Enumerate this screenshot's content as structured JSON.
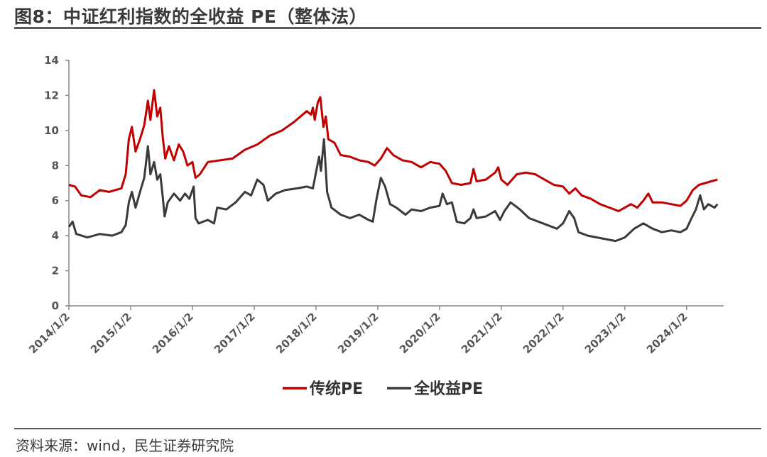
{
  "title": "图8：中证红利指数的全收益 PE（整体法）",
  "source": "资料来源：wind，民生证券研究院",
  "chart_data": {
    "type": "line",
    "ylim": [
      0,
      14
    ],
    "yticks": [
      0,
      2,
      4,
      6,
      8,
      10,
      12,
      14
    ],
    "xlim": [
      2014.0,
      2024.6
    ],
    "xticks": [
      {
        "v": 2014.0,
        "label": "2014/1/2"
      },
      {
        "v": 2015.0,
        "label": "2015/1/2"
      },
      {
        "v": 2016.0,
        "label": "2016/1/2"
      },
      {
        "v": 2017.0,
        "label": "2017/1/2"
      },
      {
        "v": 2018.0,
        "label": "2018/1/2"
      },
      {
        "v": 2019.0,
        "label": "2019/1/2"
      },
      {
        "v": 2020.0,
        "label": "2020/1/2"
      },
      {
        "v": 2021.0,
        "label": "2021/1/2"
      },
      {
        "v": 2022.0,
        "label": "2022/1/2"
      },
      {
        "v": 2023.0,
        "label": "2023/1/2"
      },
      {
        "v": 2024.0,
        "label": "2024/1/2"
      }
    ],
    "legend_position": "bottom",
    "series": [
      {
        "name": "传统PE",
        "color": "#c00000",
        "points": [
          [
            2014.0,
            6.9
          ],
          [
            2014.1,
            6.8
          ],
          [
            2014.2,
            6.3
          ],
          [
            2014.35,
            6.2
          ],
          [
            2014.5,
            6.6
          ],
          [
            2014.65,
            6.5
          ],
          [
            2014.85,
            6.7
          ],
          [
            2014.92,
            7.5
          ],
          [
            2014.97,
            9.5
          ],
          [
            2015.02,
            10.2
          ],
          [
            2015.08,
            8.8
          ],
          [
            2015.16,
            9.6
          ],
          [
            2015.22,
            10.3
          ],
          [
            2015.28,
            11.7
          ],
          [
            2015.32,
            10.6
          ],
          [
            2015.38,
            12.3
          ],
          [
            2015.43,
            10.8
          ],
          [
            2015.48,
            11.3
          ],
          [
            2015.52,
            9.6
          ],
          [
            2015.56,
            8.4
          ],
          [
            2015.62,
            9.1
          ],
          [
            2015.7,
            8.3
          ],
          [
            2015.78,
            9.2
          ],
          [
            2015.85,
            8.8
          ],
          [
            2015.92,
            8.0
          ],
          [
            2016.0,
            8.2
          ],
          [
            2016.05,
            7.3
          ],
          [
            2016.12,
            7.5
          ],
          [
            2016.25,
            8.2
          ],
          [
            2016.45,
            8.3
          ],
          [
            2016.65,
            8.4
          ],
          [
            2016.85,
            8.9
          ],
          [
            2017.05,
            9.2
          ],
          [
            2017.25,
            9.7
          ],
          [
            2017.45,
            10.0
          ],
          [
            2017.65,
            10.5
          ],
          [
            2017.85,
            11.1
          ],
          [
            2017.92,
            10.9
          ],
          [
            2017.95,
            11.3
          ],
          [
            2017.98,
            10.6
          ],
          [
            2018.03,
            11.6
          ],
          [
            2018.07,
            11.9
          ],
          [
            2018.12,
            10.2
          ],
          [
            2018.16,
            10.8
          ],
          [
            2018.2,
            9.5
          ],
          [
            2018.3,
            9.3
          ],
          [
            2018.4,
            8.6
          ],
          [
            2018.55,
            8.5
          ],
          [
            2018.7,
            8.3
          ],
          [
            2018.85,
            8.2
          ],
          [
            2018.95,
            8.0
          ],
          [
            2019.05,
            8.4
          ],
          [
            2019.15,
            9.0
          ],
          [
            2019.25,
            8.6
          ],
          [
            2019.4,
            8.3
          ],
          [
            2019.55,
            8.2
          ],
          [
            2019.7,
            7.9
          ],
          [
            2019.85,
            8.2
          ],
          [
            2020.0,
            8.1
          ],
          [
            2020.1,
            7.7
          ],
          [
            2020.2,
            7.0
          ],
          [
            2020.35,
            6.9
          ],
          [
            2020.5,
            7.0
          ],
          [
            2020.55,
            7.8
          ],
          [
            2020.6,
            7.1
          ],
          [
            2020.75,
            7.2
          ],
          [
            2020.9,
            7.6
          ],
          [
            2020.95,
            7.9
          ],
          [
            2021.0,
            7.2
          ],
          [
            2021.1,
            6.9
          ],
          [
            2021.25,
            7.5
          ],
          [
            2021.4,
            7.6
          ],
          [
            2021.55,
            7.5
          ],
          [
            2021.7,
            7.2
          ],
          [
            2021.85,
            6.9
          ],
          [
            2022.0,
            6.8
          ],
          [
            2022.1,
            6.4
          ],
          [
            2022.2,
            6.7
          ],
          [
            2022.3,
            6.3
          ],
          [
            2022.45,
            6.1
          ],
          [
            2022.6,
            5.8
          ],
          [
            2022.75,
            5.6
          ],
          [
            2022.9,
            5.4
          ],
          [
            2023.0,
            5.6
          ],
          [
            2023.1,
            5.8
          ],
          [
            2023.2,
            5.6
          ],
          [
            2023.3,
            6.0
          ],
          [
            2023.38,
            6.4
          ],
          [
            2023.45,
            5.9
          ],
          [
            2023.6,
            5.9
          ],
          [
            2023.75,
            5.8
          ],
          [
            2023.9,
            5.7
          ],
          [
            2024.0,
            6.0
          ],
          [
            2024.1,
            6.6
          ],
          [
            2024.2,
            6.9
          ],
          [
            2024.3,
            7.0
          ],
          [
            2024.4,
            7.1
          ],
          [
            2024.5,
            7.2
          ]
        ]
      },
      {
        "name": "全收益PE",
        "color": "#3a3a3a",
        "points": [
          [
            2014.0,
            4.5
          ],
          [
            2014.06,
            4.8
          ],
          [
            2014.12,
            4.1
          ],
          [
            2014.3,
            3.9
          ],
          [
            2014.5,
            4.1
          ],
          [
            2014.7,
            4.0
          ],
          [
            2014.85,
            4.2
          ],
          [
            2014.92,
            4.6
          ],
          [
            2014.97,
            5.9
          ],
          [
            2015.02,
            6.5
          ],
          [
            2015.08,
            5.6
          ],
          [
            2015.16,
            6.6
          ],
          [
            2015.22,
            7.3
          ],
          [
            2015.28,
            9.1
          ],
          [
            2015.32,
            7.5
          ],
          [
            2015.38,
            8.2
          ],
          [
            2015.43,
            7.2
          ],
          [
            2015.48,
            7.5
          ],
          [
            2015.52,
            6.2
          ],
          [
            2015.55,
            5.1
          ],
          [
            2015.6,
            5.9
          ],
          [
            2015.7,
            6.4
          ],
          [
            2015.8,
            6.0
          ],
          [
            2015.88,
            6.4
          ],
          [
            2015.95,
            6.1
          ],
          [
            2016.02,
            6.8
          ],
          [
            2016.05,
            5.0
          ],
          [
            2016.1,
            4.7
          ],
          [
            2016.25,
            4.9
          ],
          [
            2016.35,
            4.7
          ],
          [
            2016.4,
            5.6
          ],
          [
            2016.55,
            5.5
          ],
          [
            2016.7,
            5.9
          ],
          [
            2016.85,
            6.5
          ],
          [
            2016.95,
            6.3
          ],
          [
            2017.05,
            7.2
          ],
          [
            2017.15,
            6.9
          ],
          [
            2017.22,
            6.0
          ],
          [
            2017.35,
            6.4
          ],
          [
            2017.5,
            6.6
          ],
          [
            2017.7,
            6.7
          ],
          [
            2017.85,
            6.8
          ],
          [
            2017.95,
            6.7
          ],
          [
            2018.0,
            7.6
          ],
          [
            2018.05,
            8.5
          ],
          [
            2018.08,
            7.7
          ],
          [
            2018.13,
            9.5
          ],
          [
            2018.18,
            6.5
          ],
          [
            2018.25,
            5.6
          ],
          [
            2018.4,
            5.2
          ],
          [
            2018.55,
            5.0
          ],
          [
            2018.7,
            5.2
          ],
          [
            2018.85,
            4.9
          ],
          [
            2018.92,
            4.8
          ],
          [
            2018.98,
            6.1
          ],
          [
            2019.05,
            7.3
          ],
          [
            2019.12,
            6.8
          ],
          [
            2019.2,
            5.8
          ],
          [
            2019.3,
            5.6
          ],
          [
            2019.45,
            5.2
          ],
          [
            2019.55,
            5.5
          ],
          [
            2019.7,
            5.4
          ],
          [
            2019.85,
            5.6
          ],
          [
            2020.0,
            5.7
          ],
          [
            2020.05,
            6.4
          ],
          [
            2020.12,
            5.8
          ],
          [
            2020.2,
            5.9
          ],
          [
            2020.28,
            4.8
          ],
          [
            2020.4,
            4.7
          ],
          [
            2020.5,
            5.0
          ],
          [
            2020.55,
            5.5
          ],
          [
            2020.6,
            5.0
          ],
          [
            2020.75,
            5.1
          ],
          [
            2020.9,
            5.4
          ],
          [
            2020.98,
            4.9
          ],
          [
            2021.05,
            5.4
          ],
          [
            2021.15,
            5.9
          ],
          [
            2021.3,
            5.5
          ],
          [
            2021.45,
            5.0
          ],
          [
            2021.6,
            4.8
          ],
          [
            2021.75,
            4.6
          ],
          [
            2021.9,
            4.4
          ],
          [
            2022.0,
            4.7
          ],
          [
            2022.1,
            5.4
          ],
          [
            2022.18,
            5.0
          ],
          [
            2022.25,
            4.2
          ],
          [
            2022.4,
            4.0
          ],
          [
            2022.55,
            3.9
          ],
          [
            2022.7,
            3.8
          ],
          [
            2022.85,
            3.7
          ],
          [
            2023.0,
            3.9
          ],
          [
            2023.15,
            4.4
          ],
          [
            2023.3,
            4.7
          ],
          [
            2023.45,
            4.4
          ],
          [
            2023.6,
            4.2
          ],
          [
            2023.75,
            4.3
          ],
          [
            2023.9,
            4.2
          ],
          [
            2024.0,
            4.4
          ],
          [
            2024.08,
            5.0
          ],
          [
            2024.15,
            5.5
          ],
          [
            2024.22,
            6.3
          ],
          [
            2024.28,
            5.5
          ],
          [
            2024.35,
            5.8
          ],
          [
            2024.45,
            5.6
          ],
          [
            2024.5,
            5.8
          ]
        ]
      }
    ]
  }
}
